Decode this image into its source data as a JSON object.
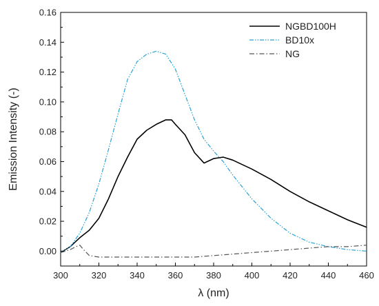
{
  "chart_data": {
    "type": "line",
    "title": "",
    "xlabel": "λ (nm)",
    "ylabel": "Emission Intensity (-)",
    "xlim": [
      300,
      460
    ],
    "ylim": [
      -0.01,
      0.16
    ],
    "xticks": [
      300,
      320,
      340,
      360,
      380,
      400,
      420,
      440,
      460
    ],
    "yticks": [
      0.0,
      0.02,
      0.04,
      0.06,
      0.08,
      0.1,
      0.12,
      0.14,
      0.16
    ],
    "xtick_labels": [
      "300",
      "320",
      "340",
      "360",
      "380",
      "400",
      "420",
      "440",
      "460"
    ],
    "ytick_labels": [
      "0.00",
      "0.02",
      "0.04",
      "0.06",
      "0.08",
      "0.10",
      "0.12",
      "0.14",
      "0.16"
    ],
    "grid": false,
    "legend_position": "top-right",
    "series": [
      {
        "name": "NGBD100H",
        "color": "#000000",
        "style": "solid",
        "x": [
          300,
          305,
          310,
          315,
          320,
          325,
          330,
          335,
          340,
          345,
          350,
          355,
          358,
          360,
          365,
          370,
          375,
          380,
          385,
          390,
          395,
          400,
          410,
          420,
          430,
          440,
          450,
          460
        ],
        "y": [
          -0.001,
          0.003,
          0.009,
          0.014,
          0.022,
          0.035,
          0.05,
          0.063,
          0.075,
          0.081,
          0.085,
          0.088,
          0.088,
          0.085,
          0.078,
          0.066,
          0.059,
          0.062,
          0.063,
          0.061,
          0.058,
          0.055,
          0.048,
          0.04,
          0.033,
          0.027,
          0.021,
          0.016
        ]
      },
      {
        "name": "BD10x",
        "color": "#2aa0d0",
        "style": "dash-dot-dot",
        "x": [
          300,
          305,
          310,
          315,
          320,
          325,
          330,
          335,
          340,
          345,
          350,
          355,
          360,
          365,
          370,
          375,
          380,
          385,
          390,
          395,
          400,
          410,
          420,
          430,
          440,
          450,
          460
        ],
        "y": [
          -0.001,
          0.003,
          0.012,
          0.026,
          0.045,
          0.068,
          0.092,
          0.115,
          0.127,
          0.132,
          0.134,
          0.132,
          0.122,
          0.105,
          0.088,
          0.075,
          0.067,
          0.06,
          0.051,
          0.043,
          0.035,
          0.022,
          0.012,
          0.006,
          0.003,
          0.001,
          0.0
        ]
      },
      {
        "name": "NG",
        "color": "#555555",
        "style": "dash-dot",
        "x": [
          300,
          305,
          308,
          310,
          312,
          315,
          320,
          330,
          340,
          350,
          360,
          370,
          380,
          390,
          400,
          410,
          420,
          430,
          440,
          450,
          460
        ],
        "y": [
          -0.001,
          0.001,
          0.003,
          0.004,
          0.001,
          -0.003,
          -0.004,
          -0.004,
          -0.004,
          -0.004,
          -0.004,
          -0.004,
          -0.003,
          -0.002,
          -0.001,
          0.0,
          0.001,
          0.002,
          0.003,
          0.003,
          0.004
        ]
      }
    ]
  }
}
